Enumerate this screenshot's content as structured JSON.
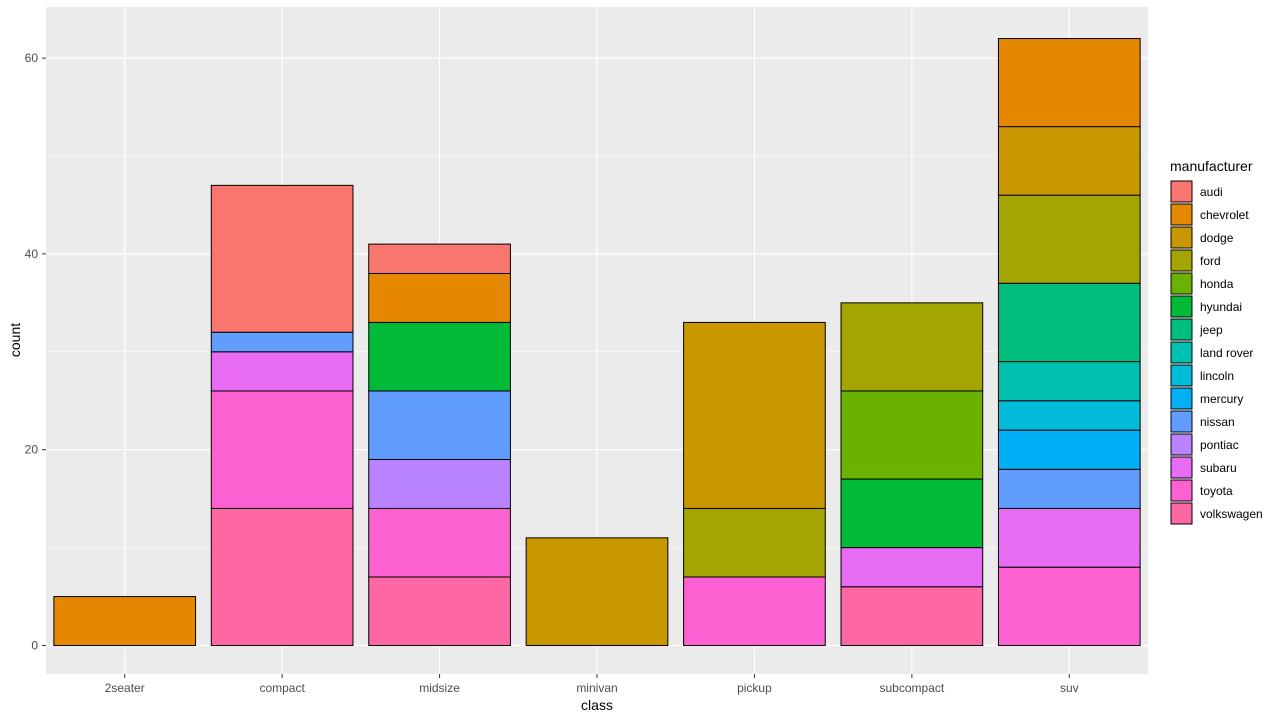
{
  "chart_data": {
    "type": "bar",
    "stacked": true,
    "xlabel": "class",
    "ylabel": "count",
    "ylim": [
      0,
      64
    ],
    "yticks": [
      0,
      20,
      40,
      60
    ],
    "grid": true,
    "legend_position": "right",
    "legend_title": "manufacturer",
    "categories": [
      "2seater",
      "compact",
      "midsize",
      "minivan",
      "pickup",
      "subcompact",
      "suv"
    ],
    "series": [
      {
        "name": "audi",
        "color": "#F8766D",
        "values": [
          0,
          15,
          3,
          0,
          0,
          0,
          0
        ]
      },
      {
        "name": "chevrolet",
        "color": "#E58700",
        "values": [
          5,
          0,
          5,
          0,
          0,
          0,
          9
        ]
      },
      {
        "name": "dodge",
        "color": "#C99800",
        "values": [
          0,
          0,
          0,
          11,
          19,
          0,
          7
        ]
      },
      {
        "name": "ford",
        "color": "#A3A500",
        "values": [
          0,
          0,
          0,
          0,
          7,
          9,
          9
        ]
      },
      {
        "name": "honda",
        "color": "#6BB100",
        "values": [
          0,
          0,
          0,
          0,
          0,
          9,
          0
        ]
      },
      {
        "name": "hyundai",
        "color": "#00BA38",
        "values": [
          0,
          0,
          7,
          0,
          0,
          7,
          0
        ]
      },
      {
        "name": "jeep",
        "color": "#00BF7D",
        "values": [
          0,
          0,
          0,
          0,
          0,
          0,
          8
        ]
      },
      {
        "name": "land rover",
        "color": "#00C0AF",
        "values": [
          0,
          0,
          0,
          0,
          0,
          0,
          4
        ]
      },
      {
        "name": "lincoln",
        "color": "#00BCD8",
        "values": [
          0,
          0,
          0,
          0,
          0,
          0,
          3
        ]
      },
      {
        "name": "mercury",
        "color": "#00B0F6",
        "values": [
          0,
          0,
          0,
          0,
          0,
          0,
          4
        ]
      },
      {
        "name": "nissan",
        "color": "#619CFF",
        "values": [
          0,
          2,
          7,
          0,
          0,
          0,
          4
        ]
      },
      {
        "name": "pontiac",
        "color": "#B983FF",
        "values": [
          0,
          0,
          5,
          0,
          0,
          0,
          0
        ]
      },
      {
        "name": "subaru",
        "color": "#E76BF3",
        "values": [
          0,
          4,
          0,
          0,
          0,
          4,
          6
        ]
      },
      {
        "name": "toyota",
        "color": "#FD61D1",
        "values": [
          0,
          12,
          7,
          0,
          7,
          0,
          8
        ]
      },
      {
        "name": "volkswagen",
        "color": "#FF67A4",
        "values": [
          0,
          14,
          7,
          0,
          0,
          6,
          0
        ]
      }
    ]
  }
}
